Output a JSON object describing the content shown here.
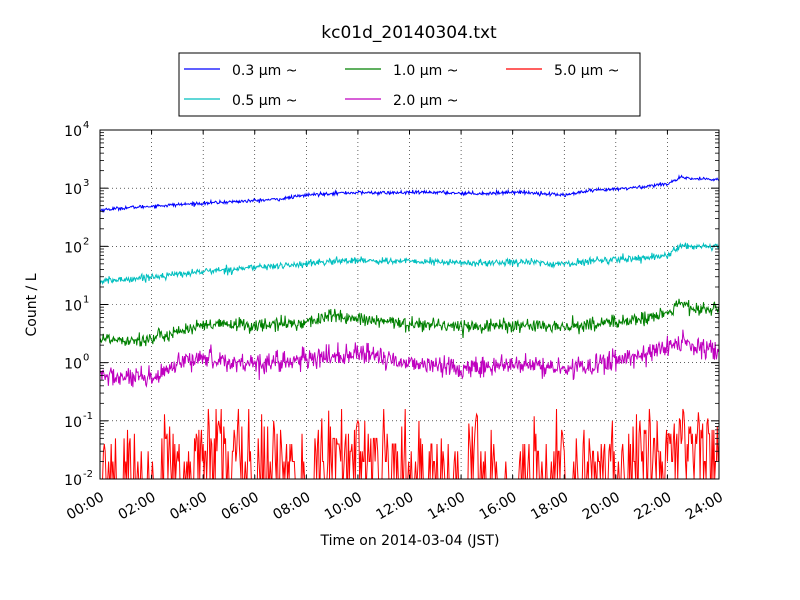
{
  "chart_data": {
    "type": "line",
    "title": "kc01d_20140304.txt",
    "xlabel": "Time on 2014-03-04 (JST)",
    "ylabel": "Count / L",
    "yscale": "log",
    "ylim": [
      0.01,
      10000
    ],
    "xlim": [
      "00:00",
      "24:00"
    ],
    "x_ticks": [
      "00:00",
      "02:00",
      "04:00",
      "06:00",
      "08:00",
      "10:00",
      "12:00",
      "14:00",
      "16:00",
      "18:00",
      "20:00",
      "22:00",
      "24:00"
    ],
    "y_ticks": [
      {
        "base": "10",
        "exp": "-2"
      },
      {
        "base": "10",
        "exp": "-1"
      },
      {
        "base": "10",
        "exp": "0"
      },
      {
        "base": "10",
        "exp": "1"
      },
      {
        "base": "10",
        "exp": "2"
      },
      {
        "base": "10",
        "exp": "3"
      },
      {
        "base": "10",
        "exp": "4"
      }
    ],
    "grid": true,
    "legend_position": "top-center",
    "series": [
      {
        "name": "0.3 μm ~",
        "color": "#0000ff",
        "noise": 0.015,
        "x": [
          "00:00",
          "01:00",
          "02:00",
          "03:00",
          "04:00",
          "05:00",
          "06:00",
          "07:00",
          "08:00",
          "09:00",
          "10:00",
          "11:00",
          "12:00",
          "13:00",
          "14:00",
          "15:00",
          "16:00",
          "17:00",
          "18:00",
          "19:00",
          "20:00",
          "21:00",
          "22:00",
          "22:30",
          "23:00",
          "24:00"
        ],
        "values": [
          420,
          460,
          490,
          520,
          550,
          580,
          610,
          650,
          760,
          820,
          840,
          830,
          840,
          850,
          820,
          810,
          860,
          820,
          760,
          900,
          960,
          1050,
          1200,
          1500,
          1450,
          1400
        ]
      },
      {
        "name": "0.5 μm ~",
        "color": "#00bfbf",
        "noise": 0.03,
        "x": [
          "00:00",
          "01:00",
          "02:00",
          "03:00",
          "04:00",
          "05:00",
          "06:00",
          "07:00",
          "08:00",
          "09:00",
          "10:00",
          "11:00",
          "12:00",
          "13:00",
          "14:00",
          "15:00",
          "16:00",
          "17:00",
          "18:00",
          "19:00",
          "20:00",
          "21:00",
          "22:00",
          "22:30",
          "23:00",
          "24:00"
        ],
        "values": [
          25,
          27,
          30,
          33,
          37,
          40,
          44,
          46,
          50,
          55,
          58,
          56,
          55,
          54,
          52,
          51,
          55,
          52,
          49,
          56,
          60,
          63,
          70,
          105,
          95,
          98
        ]
      },
      {
        "name": "1.0 μm ~",
        "color": "#008000",
        "noise": 0.06,
        "x": [
          "00:00",
          "01:00",
          "02:00",
          "03:00",
          "04:00",
          "05:00",
          "06:00",
          "07:00",
          "08:00",
          "09:00",
          "10:00",
          "11:00",
          "12:00",
          "13:00",
          "14:00",
          "15:00",
          "16:00",
          "17:00",
          "18:00",
          "19:00",
          "20:00",
          "21:00",
          "22:00",
          "22:30",
          "23:00",
          "24:00"
        ],
        "values": [
          2.6,
          2.5,
          2.5,
          3.5,
          4.2,
          4.6,
          4.3,
          4.6,
          4.9,
          6.5,
          5.5,
          5.0,
          4.7,
          4.5,
          4.2,
          4.3,
          4.4,
          4.2,
          4.0,
          4.6,
          5.0,
          5.6,
          7.0,
          10.5,
          8.5,
          8.0
        ]
      },
      {
        "name": "2.0 μm ~",
        "color": "#bf00bf",
        "noise": 0.09,
        "x": [
          "00:00",
          "01:00",
          "02:00",
          "03:00",
          "04:00",
          "05:00",
          "06:00",
          "07:00",
          "08:00",
          "09:00",
          "10:00",
          "11:00",
          "12:00",
          "13:00",
          "14:00",
          "15:00",
          "16:00",
          "17:00",
          "18:00",
          "19:00",
          "20:00",
          "21:00",
          "22:00",
          "22:30",
          "23:00",
          "24:00"
        ],
        "values": [
          0.6,
          0.55,
          0.5,
          0.9,
          1.3,
          1.0,
          1.0,
          1.05,
          1.1,
          1.3,
          1.4,
          1.2,
          1.0,
          0.9,
          0.8,
          0.85,
          0.9,
          0.9,
          0.75,
          0.9,
          1.1,
          1.4,
          1.8,
          2.4,
          1.8,
          1.5
        ]
      },
      {
        "name": "5.0 μm ~",
        "color": "#ff0000",
        "noise": 0.35,
        "floor": 0.01,
        "x": [
          "00:00",
          "01:00",
          "02:00",
          "03:00",
          "04:00",
          "05:00",
          "06:00",
          "07:00",
          "08:00",
          "09:00",
          "10:00",
          "11:00",
          "12:00",
          "13:00",
          "14:00",
          "15:00",
          "16:00",
          "17:00",
          "18:00",
          "19:00",
          "20:00",
          "21:00",
          "22:00",
          "22:30",
          "23:00",
          "24:00"
        ],
        "values": [
          0.025,
          0.025,
          0.02,
          0.03,
          0.045,
          0.05,
          0.035,
          0.03,
          0.035,
          0.045,
          0.04,
          0.035,
          0.03,
          0.025,
          0.025,
          0.028,
          0.03,
          0.025,
          0.025,
          0.028,
          0.032,
          0.04,
          0.055,
          0.06,
          0.05,
          0.04
        ]
      }
    ]
  }
}
